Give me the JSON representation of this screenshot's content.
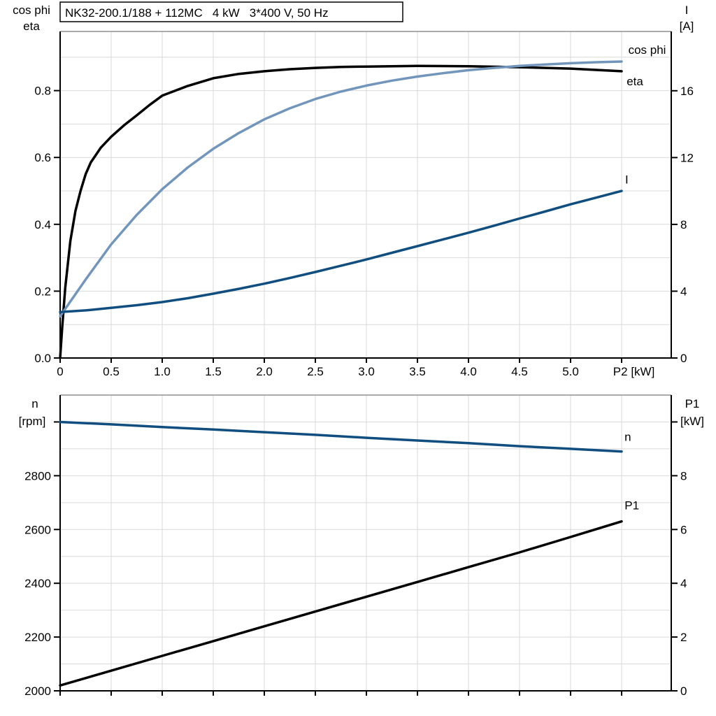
{
  "figure": {
    "title": "NK32-200.1/188 + 112MC   4 kW   3*400 V, 50 Hz"
  },
  "colors": {
    "black": "#000000",
    "light_blue": "#7296bb",
    "dark_blue": "#114e80",
    "grid": "#d9d9d9",
    "frame_top": "#8f8f8f"
  },
  "chart_data": [
    {
      "type": "line",
      "title": "NK32-200.1/188 + 112MC   4 kW   3*400 V, 50 Hz",
      "left_axis": {
        "header": [
          "cos phi",
          "eta"
        ],
        "min": 0,
        "max": 0.977,
        "ticks": [
          [
            0,
            "0.0"
          ],
          [
            0.2,
            "0.2"
          ],
          [
            0.4,
            "0.4"
          ],
          [
            0.6,
            "0.6"
          ],
          [
            0.8,
            "0.8"
          ]
        ],
        "grid": [
          0.1,
          0.2,
          0.3,
          0.4,
          0.5,
          0.6,
          0.7,
          0.8,
          0.9
        ]
      },
      "right_axis": {
        "header": [
          "I",
          "[A]"
        ],
        "min": 0,
        "max": 19.55,
        "ticks": [
          [
            0,
            "0"
          ],
          [
            4,
            "4"
          ],
          [
            8,
            "8"
          ],
          [
            12,
            "12"
          ],
          [
            16,
            "16"
          ]
        ]
      },
      "x_axis": {
        "label": "P2 [kW]",
        "label_x": 5.62,
        "min": 0,
        "max": 5.986,
        "ticks": [
          [
            0,
            "0"
          ],
          [
            0.5,
            "0.5"
          ],
          [
            1,
            "1.0"
          ],
          [
            1.5,
            "1.5"
          ],
          [
            2,
            "2.0"
          ],
          [
            2.5,
            "2.5"
          ],
          [
            3,
            "3.0"
          ],
          [
            3.5,
            "3.5"
          ],
          [
            4,
            "4.0"
          ],
          [
            4.5,
            "4.5"
          ],
          [
            5,
            "5.0"
          ],
          [
            5.5,
            ""
          ]
        ],
        "grid": [
          0.5,
          1,
          1.5,
          2,
          2.5,
          3,
          3.5,
          4,
          4.5,
          5,
          5.5
        ]
      },
      "series": [
        {
          "name": "eta",
          "label": "eta",
          "axis": "left",
          "color": "#000000",
          "label_at": [
            5.63,
            0.828
          ],
          "x": [
            0,
            0.02,
            0.05,
            0.1,
            0.15,
            0.2,
            0.25,
            0.3,
            0.4,
            0.5,
            0.625,
            0.75,
            0.875,
            1.0,
            1.25,
            1.5,
            1.75,
            2.0,
            2.25,
            2.5,
            2.75,
            3.0,
            3.5,
            4.0,
            4.5,
            5.0,
            5.25,
            5.5
          ],
          "y": [
            0,
            0.09,
            0.21,
            0.35,
            0.44,
            0.5,
            0.55,
            0.585,
            0.63,
            0.662,
            0.696,
            0.726,
            0.757,
            0.785,
            0.814,
            0.837,
            0.85,
            0.858,
            0.864,
            0.868,
            0.871,
            0.872,
            0.874,
            0.873,
            0.87,
            0.866,
            0.862,
            0.858
          ]
        },
        {
          "name": "cos-phi",
          "label": "cos phi",
          "axis": "left",
          "color": "#7296bb",
          "label_at": [
            5.75,
            0.923
          ],
          "x": [
            0,
            0.25,
            0.5,
            0.75,
            1.0,
            1.25,
            1.5,
            1.75,
            2.0,
            2.25,
            2.5,
            2.75,
            3.0,
            3.25,
            3.5,
            3.75,
            4.0,
            4.25,
            4.5,
            4.75,
            5.0,
            5.25,
            5.5
          ],
          "y": [
            0.125,
            0.235,
            0.34,
            0.428,
            0.505,
            0.57,
            0.626,
            0.673,
            0.714,
            0.747,
            0.775,
            0.797,
            0.815,
            0.83,
            0.842,
            0.852,
            0.861,
            0.868,
            0.874,
            0.878,
            0.882,
            0.885,
            0.887
          ]
        },
        {
          "name": "current",
          "label": "I",
          "axis": "right",
          "color": "#114e80",
          "label_at": [
            5.55,
            10.7
          ],
          "x": [
            0,
            0.25,
            0.5,
            0.75,
            1.0,
            1.25,
            1.5,
            1.75,
            2.0,
            2.25,
            2.5,
            2.75,
            3.0,
            3.25,
            3.5,
            3.75,
            4.0,
            4.25,
            4.5,
            4.75,
            5.0,
            5.25,
            5.5
          ],
          "y": [
            2.75,
            2.85,
            3.0,
            3.16,
            3.35,
            3.58,
            3.85,
            4.14,
            4.45,
            4.79,
            5.15,
            5.52,
            5.9,
            6.3,
            6.7,
            7.1,
            7.5,
            7.92,
            8.35,
            8.77,
            9.2,
            9.6,
            10.0
          ]
        }
      ]
    },
    {
      "type": "line",
      "title": "",
      "left_axis": {
        "header": [
          "n",
          "[rpm]"
        ],
        "min": 2000,
        "max": 3100,
        "ticks": [
          [
            2000,
            "2000"
          ],
          [
            2200,
            "2200"
          ],
          [
            2400,
            "2400"
          ],
          [
            2600,
            "2600"
          ],
          [
            2800,
            "2800"
          ],
          [
            3000,
            ""
          ]
        ],
        "grid": [
          2100,
          2200,
          2300,
          2400,
          2500,
          2600,
          2700,
          2800,
          2900,
          3000
        ]
      },
      "right_axis": {
        "header": [
          "P1",
          "[kW]"
        ],
        "min": 0,
        "max": 11,
        "ticks": [
          [
            0,
            "0"
          ],
          [
            2,
            "2"
          ],
          [
            4,
            "4"
          ],
          [
            6,
            "6"
          ],
          [
            8,
            "8"
          ],
          [
            10,
            ""
          ]
        ]
      },
      "x_axis": {
        "label": "",
        "label_x": 5.62,
        "min": 0,
        "max": 5.986,
        "ticks": [
          [
            0,
            ""
          ],
          [
            0.5,
            ""
          ],
          [
            1,
            ""
          ],
          [
            1.5,
            ""
          ],
          [
            2,
            ""
          ],
          [
            2.5,
            ""
          ],
          [
            3,
            ""
          ],
          [
            3.5,
            ""
          ],
          [
            4,
            ""
          ],
          [
            4.5,
            ""
          ],
          [
            5,
            ""
          ],
          [
            5.5,
            ""
          ]
        ],
        "grid": [
          0.5,
          1,
          1.5,
          2,
          2.5,
          3,
          3.5,
          4,
          4.5,
          5,
          5.5
        ]
      },
      "series": [
        {
          "name": "speed",
          "label": "n",
          "axis": "left",
          "color": "#114e80",
          "label_at": [
            5.56,
            2945
          ],
          "x": [
            0,
            0.5,
            1.0,
            1.5,
            2.0,
            2.5,
            3.0,
            3.5,
            4.0,
            4.5,
            5.0,
            5.5
          ],
          "y": [
            3000,
            2991,
            2981,
            2972,
            2962,
            2952,
            2941,
            2931,
            2921,
            2910,
            2900,
            2890
          ]
        },
        {
          "name": "input-power",
          "label": "P1",
          "axis": "right",
          "color": "#000000",
          "label_at": [
            5.6,
            6.91
          ],
          "x": [
            0,
            0.5,
            1.0,
            1.5,
            2.0,
            2.5,
            3.0,
            3.5,
            4.0,
            4.5,
            5.0,
            5.5
          ],
          "y": [
            0.2,
            0.75,
            1.3,
            1.85,
            2.4,
            2.95,
            3.5,
            4.05,
            4.6,
            5.15,
            5.72,
            6.3
          ]
        }
      ]
    }
  ]
}
